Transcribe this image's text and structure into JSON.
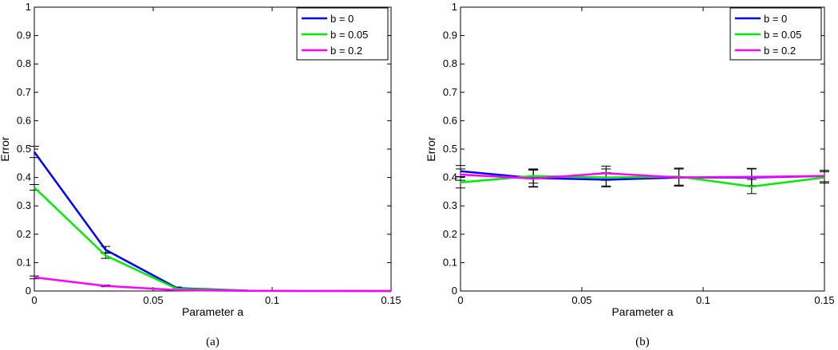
{
  "chart_data": [
    {
      "type": "line",
      "caption": "(a)",
      "xlabel": "Parameter a",
      "ylabel": "Error",
      "xlim": [
        0,
        0.15
      ],
      "ylim": [
        0,
        1
      ],
      "xticks": [
        0,
        0.05,
        0.1,
        0.15
      ],
      "xtick_labels": [
        "0",
        "0.05",
        "0.1",
        "0.15"
      ],
      "yticks": [
        0,
        0.1,
        0.2,
        0.3,
        0.4,
        0.5,
        0.6,
        0.7,
        0.8,
        0.9,
        1
      ],
      "ytick_labels": [
        "0",
        "0.1",
        "0.2",
        "0.3",
        "0.4",
        "0.5",
        "0.6",
        "0.7",
        "0.8",
        "0.9",
        "1"
      ],
      "grid": false,
      "legend_position": "top-right",
      "x": [
        0,
        0.03,
        0.06,
        0.09,
        0.12,
        0.15
      ],
      "series": [
        {
          "name": "b = 0",
          "color": "#0000ff",
          "values": [
            0.49,
            0.145,
            0.01,
            0.001,
            0.0005,
            0
          ],
          "errors": [
            0.02,
            0.012,
            0.004,
            0.001,
            0.0005,
            0
          ]
        },
        {
          "name": "b = 0.05",
          "color": "#00ee00",
          "values": [
            0.365,
            0.125,
            0.008,
            0.001,
            0.0005,
            0
          ],
          "errors": [
            0.01,
            0.01,
            0.003,
            0.001,
            0.0005,
            0
          ]
        },
        {
          "name": "b = 0.2",
          "color": "#ff00ff",
          "values": [
            0.048,
            0.018,
            0.003,
            0.0005,
            0,
            0
          ],
          "errors": [
            0.005,
            0.003,
            0.001,
            0.0005,
            0,
            0
          ]
        }
      ]
    },
    {
      "type": "line",
      "caption": "(b)",
      "xlabel": "Parameter a",
      "ylabel": "Error",
      "xlim": [
        0,
        0.15
      ],
      "ylim": [
        0,
        1
      ],
      "xticks": [
        0,
        0.05,
        0.1,
        0.15
      ],
      "xtick_labels": [
        "0",
        "0.05",
        "0.1",
        "0.15"
      ],
      "yticks": [
        0,
        0.1,
        0.2,
        0.3,
        0.4,
        0.5,
        0.6,
        0.7,
        0.8,
        0.9,
        1
      ],
      "ytick_labels": [
        "0",
        "0.1",
        "0.2",
        "0.3",
        "0.4",
        "0.5",
        "0.6",
        "0.7",
        "0.8",
        "0.9",
        "1"
      ],
      "grid": false,
      "legend_position": "top-right",
      "x": [
        0,
        0.03,
        0.06,
        0.09,
        0.12,
        0.15
      ],
      "series": [
        {
          "name": "b = 0",
          "color": "#0000ff",
          "values": [
            0.422,
            0.398,
            0.392,
            0.4,
            0.4,
            0.405
          ],
          "errors": [
            0.02,
            0.03,
            0.025,
            0.03,
            0.03,
            0.02
          ]
        },
        {
          "name": "b = 0.05",
          "color": "#00ee00",
          "values": [
            0.383,
            0.405,
            0.4,
            0.403,
            0.368,
            0.4
          ],
          "errors": [
            0.02,
            0.025,
            0.03,
            0.03,
            0.025,
            0.02
          ]
        },
        {
          "name": "b = 0.2",
          "color": "#ff00ff",
          "values": [
            0.41,
            0.396,
            0.415,
            0.4,
            0.402,
            0.405
          ],
          "errors": [
            0.02,
            0.03,
            0.025,
            0.03,
            0.03,
            0.02
          ]
        }
      ]
    }
  ]
}
